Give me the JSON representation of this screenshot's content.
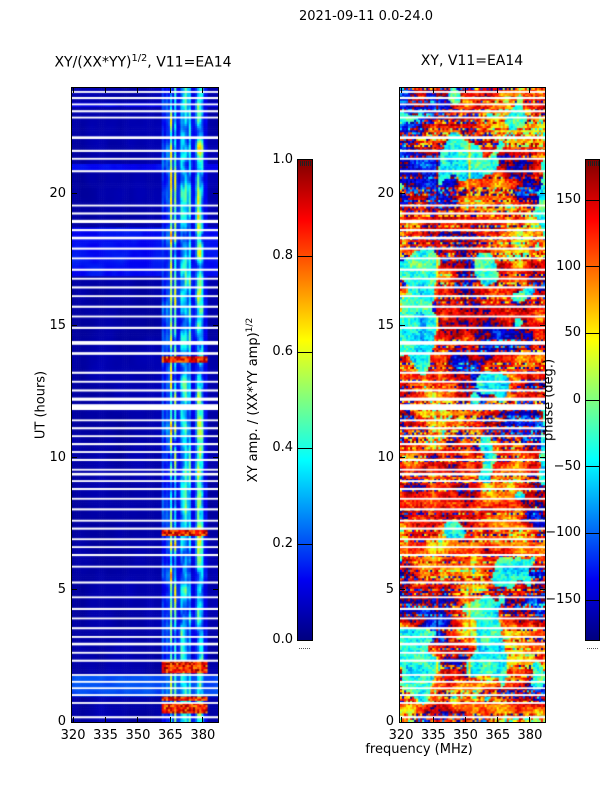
{
  "figure": {
    "suptitle": "2021-09-11 0.0-24.0",
    "xlabel": "frequency (MHz)",
    "background": "#ffffff",
    "text_color": "#000000"
  },
  "left_panel": {
    "title_base": "XY/(XX*YY)",
    "title_sup": "1/2",
    "title_rest": ", V11=EA14",
    "ylabel": "UT (hours)",
    "colorbar_label_base": "XY amp. / (XX*YY amp)",
    "colorbar_label_sup": "1/2"
  },
  "right_panel": {
    "title": "XY, V11=EA14",
    "colorbar_label": "phase (deg.)"
  },
  "chart_data": [
    {
      "type": "heatmap",
      "title": "XY/(XX*YY)^(1/2), V11=EA14",
      "xlabel": "frequency (MHz)",
      "ylabel": "UT (hours)",
      "xlim": [
        319.5,
        387
      ],
      "ylim": [
        0,
        24
      ],
      "xticks": [
        320,
        335,
        350,
        365,
        380
      ],
      "xtick_labels": [
        "320",
        "335",
        "350",
        "365",
        "380"
      ],
      "yticks": [
        0,
        5,
        10,
        15,
        20
      ],
      "ytick_labels": [
        "0",
        "5",
        "10",
        "15",
        "20"
      ],
      "colormap": "jet",
      "colormap_stops": [
        [
          0.0,
          "#000080"
        ],
        [
          0.125,
          "#0000f1"
        ],
        [
          0.375,
          "#00ffff"
        ],
        [
          0.625,
          "#ffff00"
        ],
        [
          0.875,
          "#ff0000"
        ],
        [
          1.0,
          "#800000"
        ]
      ],
      "colorbar": {
        "label": "XY amp. / (XX*YY amp)^(1/2)",
        "range": [
          0,
          1
        ],
        "ticks": [
          0.0,
          0.2,
          0.4,
          0.6,
          0.8,
          1.0
        ],
        "tick_labels": [
          "0.0",
          "0.2",
          "0.4",
          "0.6",
          "0.8",
          "1.0"
        ]
      },
      "features": {
        "description": "Mostly low cross-amplitude (dark blue ~0.02-0.08) across 320-360 MHz; persistent bright RFI band of vertical stripes near 361-382 MHz with amplitudes ~0.2-0.6; saturated red rows (~0.8-1.0) in the RFI band near UT 0.3-1.0, 1.9-2.5, 7.1, 13.7; faint broadband brightening near UT 1-1.7 and 17-18.7; many white data-gap rows.",
        "active_band": [
          361,
          382
        ],
        "strong_rows": [
          [
            0.35,
            0.68
          ],
          [
            0.78,
            0.97
          ],
          [
            1.88,
            2.16
          ],
          [
            2.2,
            2.3
          ],
          [
            7.02,
            7.25
          ],
          [
            13.63,
            13.85
          ]
        ],
        "broadband_rows": [
          [
            0.98,
            1.72,
            0.17
          ],
          [
            16.85,
            18.75,
            0.11
          ],
          [
            20.85,
            21.15,
            0.1
          ],
          [
            23.28,
            23.45,
            0.09
          ]
        ],
        "gaps": [
          [
            0.18,
            0.08
          ],
          [
            0.72,
            0.07
          ],
          [
            1.02,
            0.07
          ],
          [
            1.28,
            0.06
          ],
          [
            1.52,
            0.07
          ],
          [
            1.78,
            0.06
          ],
          [
            2.32,
            0.08
          ],
          [
            2.62,
            0.07
          ],
          [
            2.95,
            0.1
          ],
          [
            3.22,
            0.07
          ],
          [
            3.55,
            0.08
          ],
          [
            3.92,
            0.07
          ],
          [
            4.28,
            0.08
          ],
          [
            4.72,
            0.07
          ],
          [
            5.28,
            0.08
          ],
          [
            5.88,
            0.07
          ],
          [
            6.32,
            0.08
          ],
          [
            6.62,
            0.07
          ],
          [
            6.92,
            0.07
          ],
          [
            7.32,
            0.08
          ],
          [
            7.62,
            0.07
          ],
          [
            8.05,
            0.08
          ],
          [
            8.45,
            0.07
          ],
          [
            8.82,
            0.08
          ],
          [
            9.12,
            0.07
          ],
          [
            9.38,
            0.1
          ],
          [
            9.55,
            0.07
          ],
          [
            9.92,
            0.08
          ],
          [
            10.22,
            0.07
          ],
          [
            10.52,
            0.08
          ],
          [
            10.82,
            0.07
          ],
          [
            11.12,
            0.08
          ],
          [
            11.42,
            0.07
          ],
          [
            11.92,
            0.22
          ],
          [
            12.22,
            0.12
          ],
          [
            12.55,
            0.08
          ],
          [
            12.88,
            0.07
          ],
          [
            13.22,
            0.08
          ],
          [
            13.95,
            0.1
          ],
          [
            14.35,
            0.14
          ],
          [
            14.92,
            0.08
          ],
          [
            15.35,
            0.07
          ],
          [
            15.72,
            0.08
          ],
          [
            16.12,
            0.07
          ],
          [
            16.45,
            0.08
          ],
          [
            16.78,
            0.07
          ],
          [
            17.12,
            0.08
          ],
          [
            17.55,
            0.07
          ],
          [
            17.92,
            0.08
          ],
          [
            18.32,
            0.1
          ],
          [
            18.62,
            0.08
          ],
          [
            18.95,
            0.12
          ],
          [
            19.25,
            0.08
          ],
          [
            19.55,
            0.07
          ],
          [
            20.85,
            0.08
          ],
          [
            21.32,
            0.07
          ],
          [
            21.62,
            0.08
          ],
          [
            22.12,
            0.1
          ],
          [
            22.88,
            0.07
          ],
          [
            23.12,
            0.08
          ],
          [
            23.38,
            0.07
          ],
          [
            23.62,
            0.08
          ],
          [
            23.85,
            0.07
          ]
        ]
      }
    },
    {
      "type": "heatmap",
      "title": "XY, V11=EA14",
      "xlabel": "frequency (MHz)",
      "ylabel": "UT (hours)",
      "xlim": [
        319.5,
        387
      ],
      "ylim": [
        0,
        24
      ],
      "xticks": [
        320,
        335,
        350,
        365,
        380
      ],
      "xtick_labels": [
        "320",
        "335",
        "350",
        "365",
        "380"
      ],
      "yticks": [
        0,
        5,
        10,
        15,
        20
      ],
      "ytick_labels": [
        "0",
        "5",
        "10",
        "15",
        "20"
      ],
      "colormap": "jet",
      "colormap_stops": [
        [
          0.0,
          "#000080"
        ],
        [
          0.125,
          "#0000f1"
        ],
        [
          0.375,
          "#00ffff"
        ],
        [
          0.625,
          "#ffff00"
        ],
        [
          0.875,
          "#ff0000"
        ],
        [
          1.0,
          "#800000"
        ]
      ],
      "colorbar": {
        "label": "phase (deg.)",
        "range": [
          -180,
          180
        ],
        "ticks": [
          -150,
          -100,
          -50,
          0,
          50,
          100,
          150
        ],
        "tick_labels": [
          "−150",
          "−100",
          "−50",
          "0",
          "50",
          "100",
          "150"
        ]
      },
      "features": {
        "description": "Cross-correlation phase: noisy patchwork dominated by red/orange (~+120 to +180 deg) with large cyan/teal patches (~-30 to -60 deg), scattered dark blue (~-120 to -180 deg), yellow-green transitions, heavy per-row speckle in many rows, faint vertical bright lines near 337 and 352 MHz, and the same white data-gap rows as the left panel.",
        "dominant_phase_deg": 140,
        "cyan_patch_phase_deg": -35,
        "vlines_mhz": [
          337,
          352
        ],
        "speckle_row_fraction": 0.4
      }
    }
  ]
}
